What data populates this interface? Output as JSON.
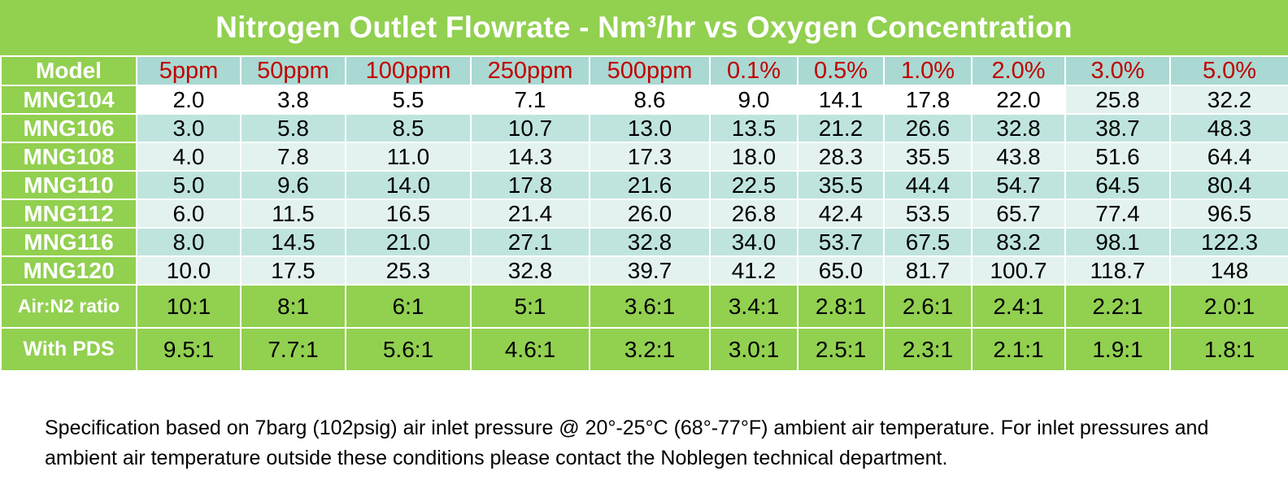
{
  "title": "Nitrogen Outlet Flowrate - Nm³/hr vs Oxygen Concentration",
  "table": {
    "corner_label": "Model",
    "columns": [
      "5ppm",
      "50ppm",
      "100ppm",
      "250ppm",
      "500ppm",
      "0.1%",
      "0.5%",
      "1.0%",
      "2.0%",
      "3.0%",
      "5.0%"
    ],
    "rows": [
      {
        "model": "MNG104",
        "values": [
          "2.0",
          "3.8",
          "5.5",
          "7.1",
          "8.6",
          "9.0",
          "14.1",
          "17.8",
          "22.0",
          "25.8",
          "32.2"
        ]
      },
      {
        "model": "MNG106",
        "values": [
          "3.0",
          "5.8",
          "8.5",
          "10.7",
          "13.0",
          "13.5",
          "21.2",
          "26.6",
          "32.8",
          "38.7",
          "48.3"
        ]
      },
      {
        "model": "MNG108",
        "values": [
          "4.0",
          "7.8",
          "11.0",
          "14.3",
          "17.3",
          "18.0",
          "28.3",
          "35.5",
          "43.8",
          "51.6",
          "64.4"
        ]
      },
      {
        "model": "MNG110",
        "values": [
          "5.0",
          "9.6",
          "14.0",
          "17.8",
          "21.6",
          "22.5",
          "35.5",
          "44.4",
          "54.7",
          "64.5",
          "80.4"
        ]
      },
      {
        "model": "MNG112",
        "values": [
          "6.0",
          "11.5",
          "16.5",
          "21.4",
          "26.0",
          "26.8",
          "42.4",
          "53.5",
          "65.7",
          "77.4",
          "96.5"
        ]
      },
      {
        "model": "MNG116",
        "values": [
          "8.0",
          "14.5",
          "21.0",
          "27.1",
          "32.8",
          "34.0",
          "53.7",
          "67.5",
          "83.2",
          "98.1",
          "122.3"
        ]
      },
      {
        "model": "MNG120",
        "values": [
          "10.0",
          "17.5",
          "25.3",
          "32.8",
          "39.7",
          "41.2",
          "65.0",
          "81.7",
          "100.7",
          "118.7",
          "148"
        ]
      }
    ],
    "ratio_row": {
      "label": "Air:N2 ratio",
      "values": [
        "10:1",
        "8:1",
        "6:1",
        "5:1",
        "3.6:1",
        "3.4:1",
        "2.8:1",
        "2.6:1",
        "2.4:1",
        "2.2:1",
        "2.0:1"
      ]
    },
    "pds_row": {
      "label": "With PDS",
      "values": [
        "9.5:1",
        "7.7:1",
        "5.6:1",
        "4.6:1",
        "3.2:1",
        "3.0:1",
        "2.5:1",
        "2.3:1",
        "2.1:1",
        "1.9:1",
        "1.8:1"
      ]
    }
  },
  "note": "Specification based on 7barg (102psig) air inlet pressure @ 20°-25°C (68°-77°F) ambient air temperature. For inlet pressures and ambient air temperature outside these conditions please contact the Noblegen technical department.",
  "colors": {
    "green": "#92d050",
    "teal_header": "#a9d9d2",
    "teal_light": "#e3f2ef",
    "teal_mid": "#bfe4de",
    "red_text": "#c00000"
  }
}
